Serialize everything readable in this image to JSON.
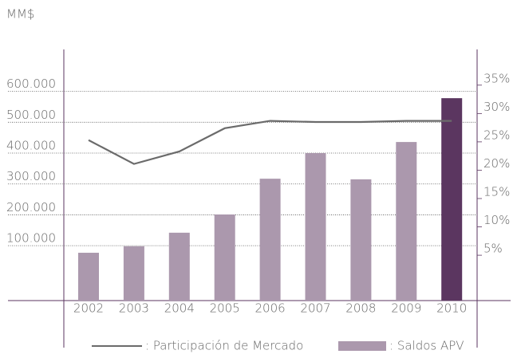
{
  "chart_data": {
    "type": "bar-line",
    "y_label": "MM$",
    "categories": [
      "2002",
      "2003",
      "2004",
      "2005",
      "2006",
      "2007",
      "2008",
      "2009",
      "2010"
    ],
    "series": [
      {
        "name": ": Saldos APV",
        "type": "bar",
        "color": "#ab98ad",
        "colors": [
          "#ab98ad",
          "#ab98ad",
          "#ab98ad",
          "#ab98ad",
          "#ab98ad",
          "#ab98ad",
          "#ab98ad",
          "#ab98ad",
          "#5b3660"
        ],
        "values": [
          77000,
          98000,
          142000,
          201000,
          317000,
          400000,
          315000,
          436000,
          578000
        ]
      },
      {
        "name": ": Participación de Mercado",
        "type": "line",
        "axis": "y2",
        "color": "#6b6b6b",
        "values": [
          25.3,
          21.1,
          23.3,
          27.4,
          28.7,
          28.5,
          28.5,
          28.7,
          28.7
        ]
      }
    ],
    "ylim": [
      -78000,
      736000
    ],
    "yticks": [
      {
        "value": 100000,
        "label": "100.000"
      },
      {
        "value": 200000,
        "label": "200.000"
      },
      {
        "value": 300000,
        "label": "300.000"
      },
      {
        "value": 400000,
        "label": "400.000"
      },
      {
        "value": 500000,
        "label": "500.000"
      },
      {
        "value": 600000,
        "label": "600.000"
      }
    ],
    "y2lim": [
      -3,
      41.3
    ],
    "y2ticks": [
      {
        "value": 5,
        "label": "5%"
      },
      {
        "value": 10,
        "label": "10%"
      },
      {
        "value": 15,
        "label": "15%"
      },
      {
        "value": 20,
        "label": "20%"
      },
      {
        "value": 25,
        "label": "25%"
      },
      {
        "value": 30,
        "label": "30%"
      },
      {
        "value": 35,
        "label": "35%"
      }
    ],
    "grid": true
  }
}
